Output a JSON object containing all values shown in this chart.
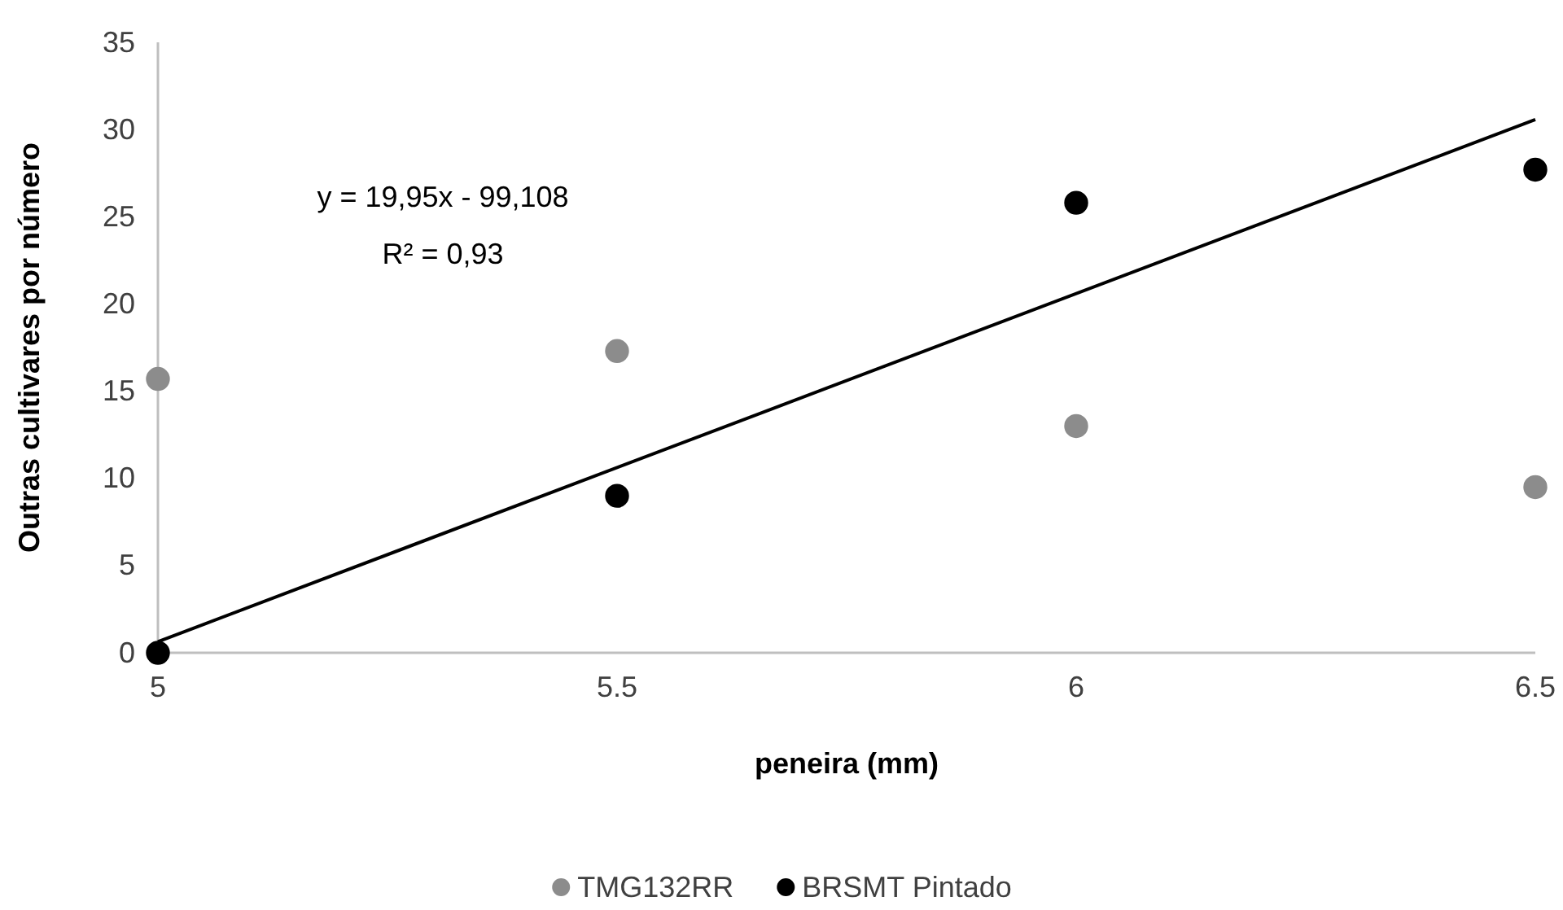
{
  "chart_data": {
    "type": "scatter",
    "xlabel": "peneira (mm)",
    "ylabel": "Outras cultivares por número",
    "x": [
      5,
      5.5,
      6,
      6.5
    ],
    "xlim": [
      5,
      6.5
    ],
    "xticks": [
      5,
      5.5,
      6,
      6.5
    ],
    "ylim": [
      0,
      35
    ],
    "yticks": [
      0,
      5,
      10,
      15,
      20,
      25,
      30,
      35
    ],
    "series": [
      {
        "name": "TMG132RR",
        "color": "#8c8c8c",
        "values": [
          15.7,
          17.3,
          13.0,
          9.5
        ]
      },
      {
        "name": "BRSMT Pintado",
        "color": "#000000",
        "values": [
          0,
          9.0,
          25.8,
          27.7
        ]
      },
      {
        "type": "line",
        "color": "#000000",
        "x": [
          5,
          6.5
        ],
        "values": [
          0.64,
          30.57
        ],
        "marker": "none"
      }
    ],
    "annotations": [
      "y = 19,95x - 99,108",
      "R² = 0,93"
    ],
    "marker": "circle",
    "grid": false,
    "legend": "bottom"
  }
}
